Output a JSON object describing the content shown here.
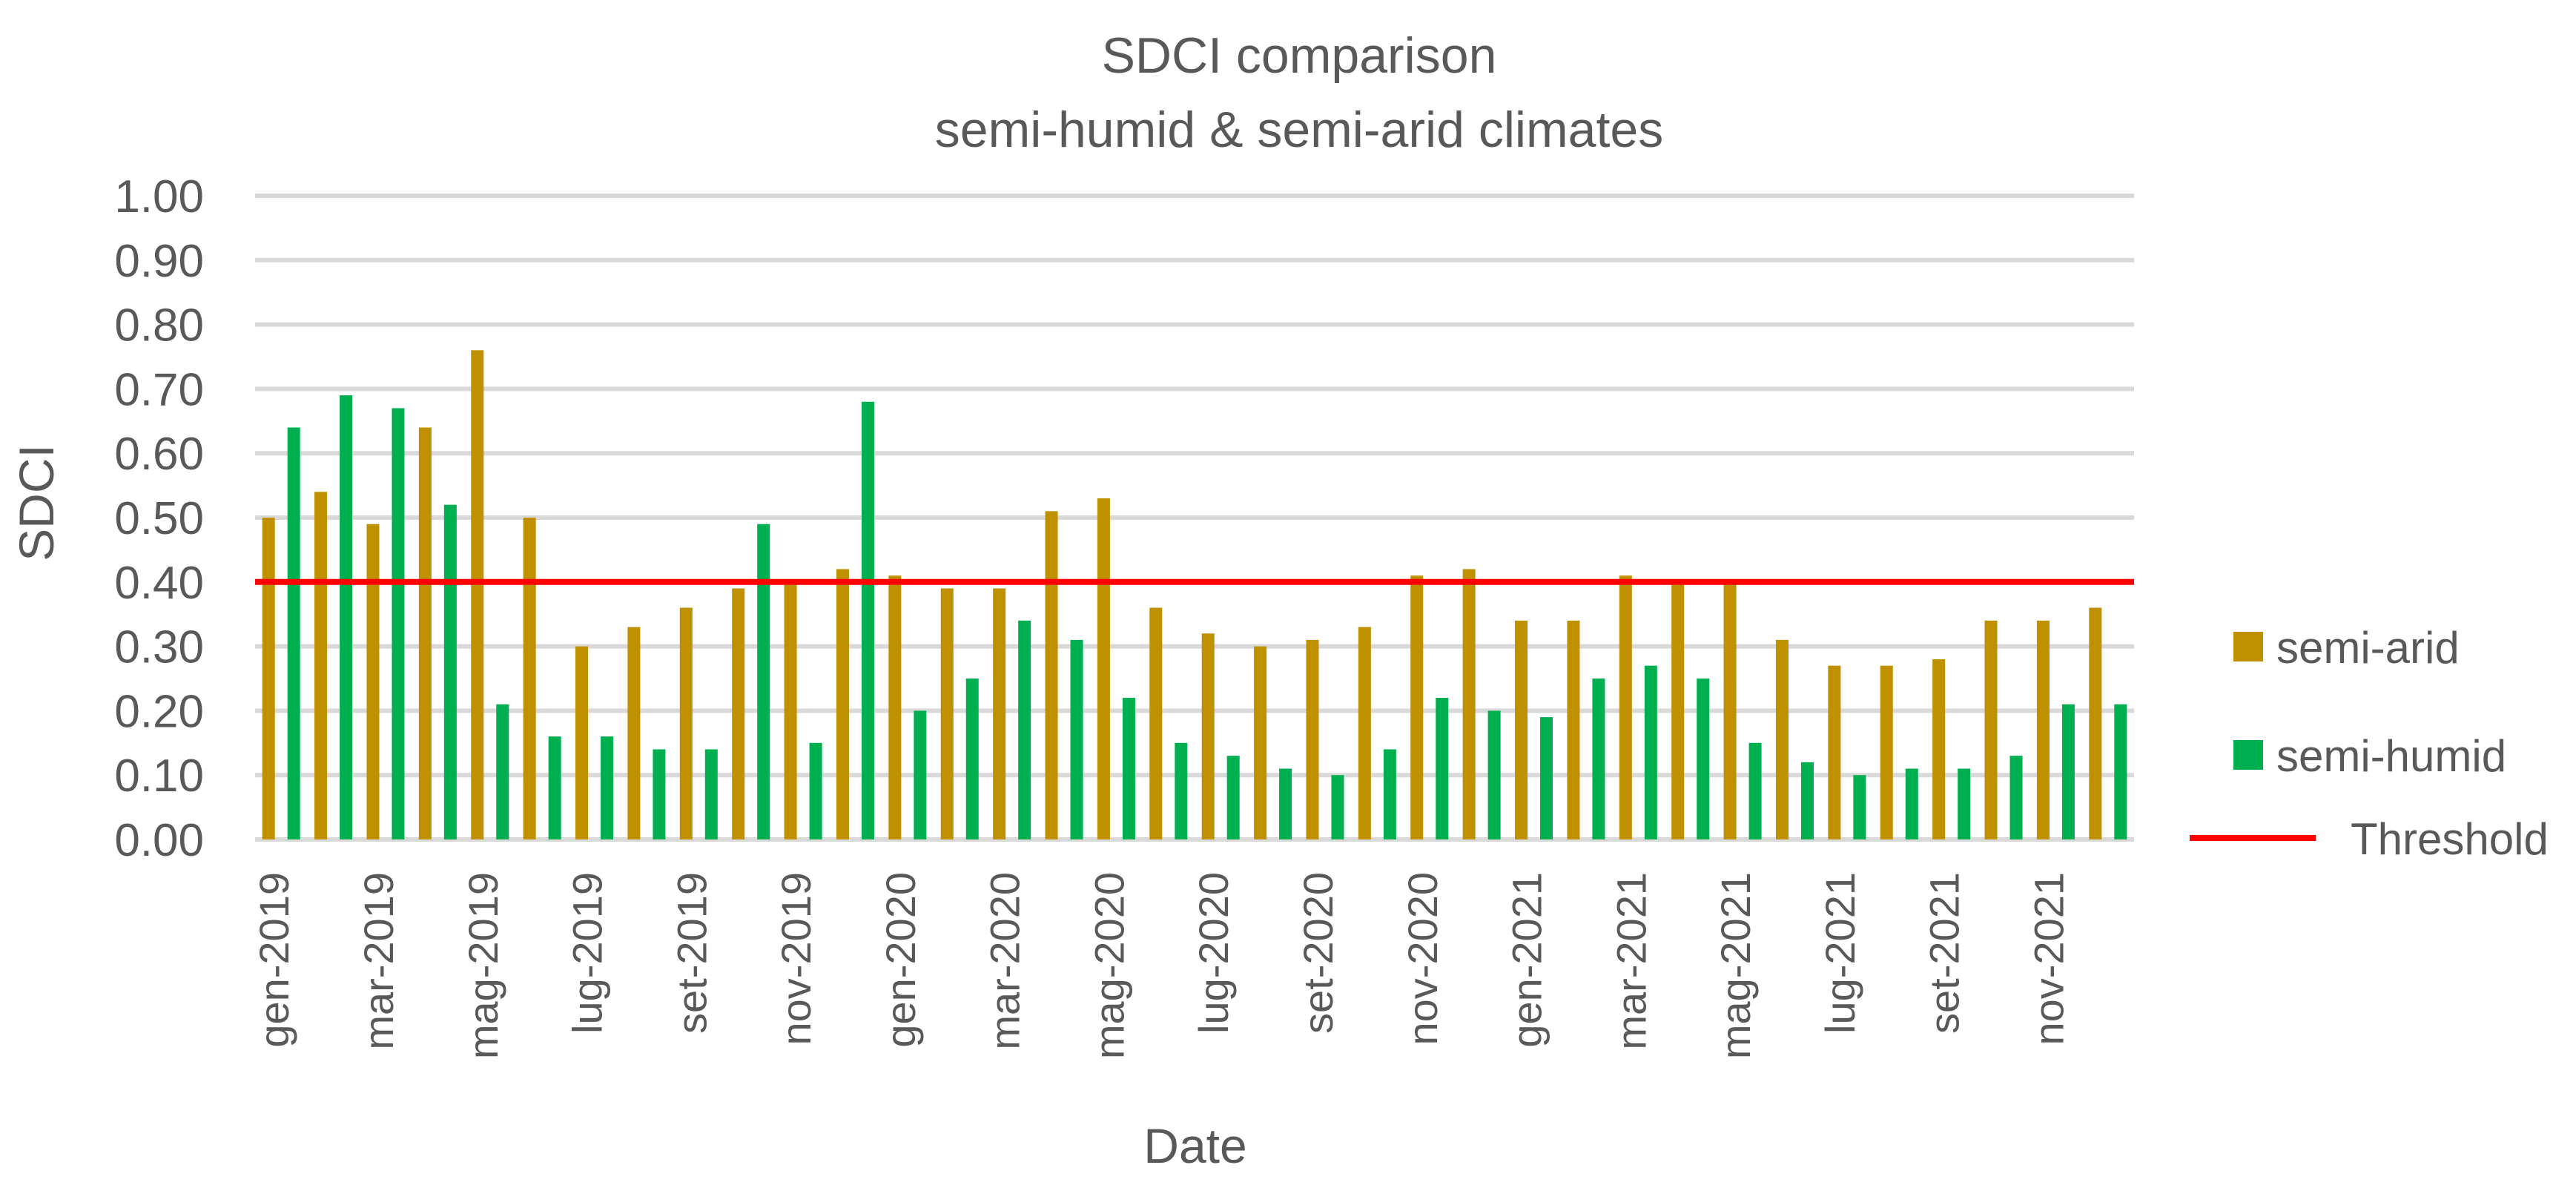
{
  "chart_data": {
    "type": "bar",
    "title": "SDCI comparison",
    "subtitle": "semi-humid & semi-arid climates",
    "xlabel": "Date",
    "ylabel": "SDCI",
    "ylim": [
      0,
      1.0
    ],
    "yticks": [
      "0.00",
      "0.10",
      "0.20",
      "0.30",
      "0.40",
      "0.50",
      "0.60",
      "0.70",
      "0.80",
      "0.90",
      "1.00"
    ],
    "grid": true,
    "legend_position": "right",
    "categories": [
      "gen-2019",
      "feb-2019",
      "mar-2019",
      "apr-2019",
      "mag-2019",
      "giu-2019",
      "lug-2019",
      "ago-2019",
      "set-2019",
      "ott-2019",
      "nov-2019",
      "dic-2019",
      "gen-2020",
      "feb-2020",
      "mar-2020",
      "apr-2020",
      "mag-2020",
      "giu-2020",
      "lug-2020",
      "ago-2020",
      "set-2020",
      "ott-2020",
      "nov-2020",
      "dic-2020",
      "gen-2021",
      "feb-2021",
      "mar-2021",
      "apr-2021",
      "mag-2021",
      "giu-2021",
      "lug-2021",
      "ago-2021",
      "set-2021",
      "ott-2021",
      "nov-2021",
      "dic-2021"
    ],
    "x_tick_labels": [
      "gen-2019",
      "",
      "mar-2019",
      "",
      "mag-2019",
      "",
      "lug-2019",
      "",
      "set-2019",
      "",
      "nov-2019",
      "",
      "gen-2020",
      "",
      "mar-2020",
      "",
      "mag-2020",
      "",
      "lug-2020",
      "",
      "set-2020",
      "",
      "nov-2020",
      "",
      "gen-2021",
      "",
      "mar-2021",
      "",
      "mag-2021",
      "",
      "lug-2021",
      "",
      "set-2021",
      "",
      "nov-2021",
      ""
    ],
    "series": [
      {
        "name": "semi-arid",
        "color": "#BF9000",
        "values": [
          0.5,
          0.54,
          0.49,
          0.64,
          0.76,
          0.5,
          0.3,
          0.33,
          0.36,
          0.39,
          0.4,
          0.42,
          0.41,
          0.39,
          0.39,
          0.51,
          0.53,
          0.36,
          0.32,
          0.3,
          0.31,
          0.33,
          0.41,
          0.42,
          0.34,
          0.34,
          0.41,
          0.4,
          0.4,
          0.31,
          0.27,
          0.27,
          0.28,
          0.34,
          0.34,
          0.36
        ]
      },
      {
        "name": "semi-humid",
        "color": "#00B050",
        "values": [
          0.64,
          0.69,
          0.67,
          0.52,
          0.21,
          0.16,
          0.16,
          0.14,
          0.14,
          0.49,
          0.15,
          0.68,
          0.2,
          0.25,
          0.34,
          0.31,
          0.22,
          0.15,
          0.13,
          0.11,
          0.1,
          0.14,
          0.22,
          0.2,
          0.19,
          0.25,
          0.27,
          0.25,
          0.15,
          0.12,
          0.1,
          0.11,
          0.11,
          0.13,
          0.21,
          0.21
        ]
      }
    ],
    "threshold": {
      "name": "Threshold",
      "value": 0.4,
      "color": "#FF0000"
    },
    "colors": {
      "text": "#595959",
      "grid": "#D9D9D9"
    }
  }
}
